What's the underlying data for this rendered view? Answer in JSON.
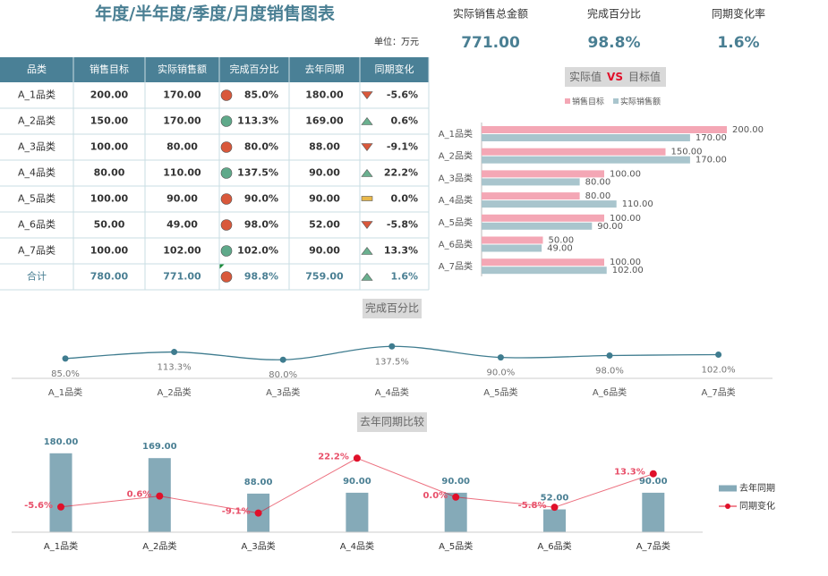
{
  "header": {
    "title": "年度/半年度/季度/月度销售图表",
    "unit": "单位：万元"
  },
  "kpis": [
    {
      "label": "实际销售总金额",
      "value": "771.00"
    },
    {
      "label": "完成百分比",
      "value": "98.8%"
    },
    {
      "label": "同期变化率",
      "value": "1.6%"
    }
  ],
  "table": {
    "columns": [
      "品类",
      "销售目标",
      "实际销售额",
      "完成百分比",
      "去年同期",
      "同期变化"
    ],
    "rows": [
      [
        "A_1品类",
        "200.00",
        "170.00",
        "85.0%",
        "180.00",
        "-5.6%"
      ],
      [
        "A_2品类",
        "150.00",
        "170.00",
        "113.3%",
        "169.00",
        "0.6%"
      ],
      [
        "A_3品类",
        "100.00",
        "80.00",
        "80.0%",
        "88.00",
        "-9.1%"
      ],
      [
        "A_4品类",
        "80.00",
        "110.00",
        "137.5%",
        "90.00",
        "22.2%"
      ],
      [
        "A_5品类",
        "100.00",
        "90.00",
        "90.0%",
        "90.00",
        "0.0%"
      ],
      [
        "A_6品类",
        "50.00",
        "49.00",
        "98.0%",
        "52.00",
        "-5.8%"
      ],
      [
        "A_7品类",
        "100.00",
        "102.00",
        "102.0%",
        "90.00",
        "13.3%"
      ]
    ],
    "total": [
      "合计",
      "780.00",
      "771.00",
      "98.8%",
      "759.00",
      "1.6%"
    ]
  },
  "chart_data": [
    {
      "type": "barh",
      "title": [
        "实际值",
        "VS",
        "目标值"
      ],
      "categories": [
        "A_1品类",
        "A_2品类",
        "A_3品类",
        "A_4品类",
        "A_5品类",
        "A_6品类",
        "A_7品类"
      ],
      "series": [
        {
          "name": "销售目标",
          "color": "#f4a7b5",
          "values": [
            200,
            150,
            100,
            80,
            100,
            50,
            100
          ],
          "value_labels": [
            "200.00",
            "150.00",
            "100.00",
            "80.00",
            "100.00",
            "50.00",
            "100.00"
          ]
        },
        {
          "name": "实际销售额",
          "color": "#a9c5cd",
          "values": [
            170,
            170,
            80,
            110,
            90,
            49,
            102
          ],
          "value_labels": [
            "170.00",
            "170.00",
            "80.00",
            "110.00",
            "90.00",
            "49.00",
            "102.00"
          ]
        }
      ],
      "xlim": [
        0,
        200
      ],
      "legend": "top"
    },
    {
      "type": "line",
      "title": "完成百分比",
      "categories": [
        "A_1品类",
        "A_2品类",
        "A_3品类",
        "A_4品类",
        "A_5品类",
        "A_6品类",
        "A_7品类"
      ],
      "values": [
        85.0,
        113.3,
        80.0,
        137.5,
        90.0,
        98.0,
        102.0
      ],
      "value_labels": [
        "85.0%",
        "113.3%",
        "80.0%",
        "137.5%",
        "90.0%",
        "98.0%",
        "102.0%"
      ],
      "color": "#3f7c8f",
      "ylim": [
        0,
        250
      ],
      "smooth": true
    },
    {
      "type": "combo",
      "title": "去年同期比较",
      "categories": [
        "A_1品类",
        "A_2品类",
        "A_3品类",
        "A_4品类",
        "A_5品类",
        "A_6品类",
        "A_7品类"
      ],
      "series": [
        {
          "name": "去年同期",
          "type": "bar",
          "color": "#85aab8",
          "values": [
            180,
            169,
            88,
            90,
            90,
            52,
            90
          ],
          "value_labels": [
            "180.00",
            "169.00",
            "88.00",
            "90.00",
            "90.00",
            "52.00",
            "90.00"
          ]
        },
        {
          "name": "同期变化",
          "type": "line",
          "axis": "y2",
          "color": "#e0102a",
          "values": [
            -5.6,
            0.6,
            -9.1,
            22.2,
            0.0,
            -5.8,
            13.3
          ],
          "value_labels": [
            "-5.6%",
            "0.6%",
            "-9.1%",
            "22.2%",
            "0.0%",
            "-5.8%",
            "13.3%"
          ]
        }
      ],
      "ylim": [
        0,
        200
      ],
      "y2lim": [
        -20,
        30
      ],
      "legend": "right"
    }
  ]
}
